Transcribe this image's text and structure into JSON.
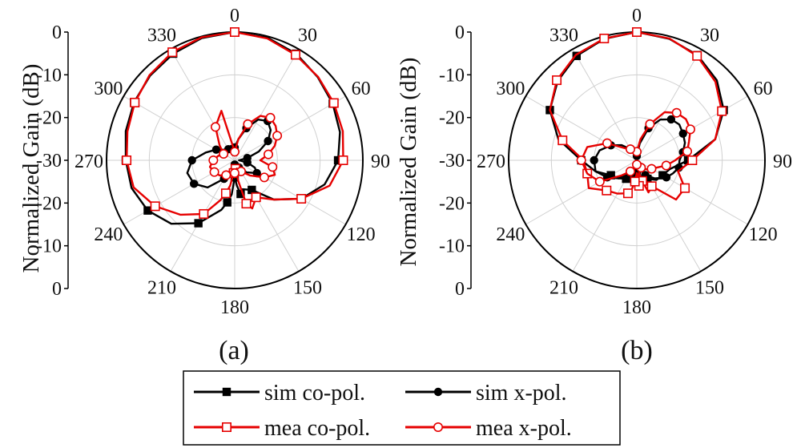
{
  "chart_data": [
    {
      "type": "polar-line",
      "panel_label": "(a)",
      "ylabel": "Normalized Gain (dB)",
      "radial_ticks": [
        "0",
        "-10",
        "-20",
        "-30",
        "-20",
        "-10",
        "0"
      ],
      "radial_range": [
        -30,
        0
      ],
      "angle_ticks": [
        "0",
        "30",
        "60",
        "90",
        "120",
        "150",
        "180",
        "210",
        "240",
        "270",
        "300",
        "330"
      ],
      "series": [
        {
          "name": "sim co-pol.",
          "color": "#000000",
          "marker": "square-filled",
          "angles": [
            0,
            15,
            30,
            45,
            60,
            75,
            90,
            105,
            120,
            135,
            150,
            165,
            170,
            175,
            180,
            185,
            190,
            195,
            210,
            225,
            240,
            255,
            270,
            285,
            300,
            315,
            330,
            345,
            360
          ],
          "values": [
            0,
            -0.3,
            -1.2,
            -2.5,
            -3.5,
            -4.5,
            -5.8,
            -8.2,
            -12,
            -17,
            -22,
            -23,
            -22,
            -24,
            -26,
            -22,
            -20,
            -18,
            -13,
            -9,
            -6.5,
            -5,
            -4.5,
            -3.6,
            -2.8,
            -2,
            -1.2,
            -0.4,
            0
          ]
        },
        {
          "name": "sim x-pol.",
          "color": "#000000",
          "marker": "circle-filled",
          "angles": [
            0,
            10,
            20,
            30,
            40,
            50,
            60,
            70,
            80,
            90,
            100,
            110,
            120,
            135,
            150,
            165,
            180,
            195,
            210,
            225,
            240,
            255,
            270,
            285,
            300,
            315,
            330,
            345,
            360
          ],
          "values": [
            -27,
            -25,
            -22,
            -19,
            -18,
            -19,
            -21,
            -24,
            -27,
            -29,
            -27,
            -25,
            -24,
            -26,
            -28,
            -29.5,
            -29,
            -28,
            -25,
            -21,
            -19,
            -18.5,
            -20,
            -23,
            -25,
            -26.5,
            -27,
            -26.5,
            -27
          ]
        },
        {
          "name": "mea co-pol.",
          "color": "#e60000",
          "marker": "square-open",
          "angles": [
            0,
            15,
            30,
            45,
            60,
            75,
            90,
            105,
            120,
            135,
            150,
            160,
            165,
            170,
            175,
            180,
            185,
            190,
            195,
            200,
            210,
            225,
            240,
            255,
            270,
            285,
            300,
            315,
            330,
            345,
            360
          ],
          "values": [
            0,
            -0.5,
            -1.5,
            -2.4,
            -3.2,
            -3.8,
            -4.6,
            -7,
            -12,
            -17,
            -20,
            -18,
            -19.5,
            -25,
            -28,
            -26,
            -27,
            -24,
            -22,
            -20,
            -15.5,
            -12,
            -8.5,
            -5.5,
            -4.7,
            -4,
            -3,
            -1.8,
            -0.8,
            -0.2,
            0
          ]
        },
        {
          "name": "mea x-pol.",
          "color": "#e60000",
          "marker": "circle-open",
          "angles": [
            0,
            10,
            20,
            30,
            40,
            50,
            60,
            70,
            80,
            90,
            100,
            110,
            120,
            135,
            150,
            165,
            180,
            195,
            210,
            225,
            240,
            255,
            270,
            285,
            300,
            315,
            330,
            345,
            360
          ],
          "values": [
            -28,
            -25,
            -21,
            -18,
            -17,
            -17.5,
            -18.5,
            -20,
            -22,
            -24,
            -21,
            -20,
            -22,
            -25,
            -27,
            -28,
            -27,
            -26.5,
            -26,
            -25,
            -24.5,
            -24,
            -25,
            -26,
            -27,
            -25,
            -21,
            -18,
            -28
          ]
        }
      ]
    },
    {
      "type": "polar-line",
      "panel_label": "(b)",
      "ylabel": "Normalized Gain (dB)",
      "radial_ticks": [
        "0",
        "-10",
        "-20",
        "-30",
        "-20",
        "-10",
        "0"
      ],
      "radial_range": [
        -30,
        0
      ],
      "angle_ticks": [
        "0",
        "30",
        "60",
        "90",
        "120",
        "150",
        "180",
        "210",
        "240",
        "270",
        "300",
        "330"
      ],
      "series": [
        {
          "name": "sim co-pol.",
          "color": "#000000",
          "marker": "square-filled",
          "angles": [
            0,
            15,
            30,
            45,
            60,
            75,
            90,
            105,
            120,
            135,
            150,
            165,
            180,
            195,
            210,
            225,
            240,
            255,
            270,
            285,
            300,
            315,
            330,
            345,
            360
          ],
          "values": [
            0,
            -0.6,
            -1.6,
            -3.5,
            -6.5,
            -11,
            -18,
            -22,
            -23,
            -23.5,
            -25,
            -26,
            -27,
            -26,
            -25,
            -24,
            -23,
            -20,
            -17,
            -11,
            -6.5,
            -3.8,
            -1.8,
            -0.6,
            0
          ]
        },
        {
          "name": "sim x-pol.",
          "color": "#000000",
          "marker": "circle-filled",
          "angles": [
            0,
            10,
            20,
            30,
            40,
            50,
            60,
            70,
            80,
            90,
            100,
            110,
            120,
            135,
            150,
            165,
            180,
            195,
            210,
            225,
            240,
            255,
            270,
            285,
            300,
            315,
            330,
            345,
            360
          ],
          "values": [
            -29,
            -26,
            -22,
            -19,
            -17.5,
            -17,
            -17.5,
            -18,
            -19,
            -20,
            -20,
            -21,
            -22,
            -24,
            -26,
            -28,
            -29,
            -28,
            -27,
            -24,
            -22,
            -20,
            -20,
            -21,
            -23,
            -25,
            -27,
            -28,
            -29
          ]
        },
        {
          "name": "mea co-pol.",
          "color": "#e60000",
          "marker": "square-open",
          "angles": [
            0,
            15,
            30,
            45,
            60,
            75,
            90,
            105,
            120,
            135,
            150,
            160,
            165,
            170,
            175,
            180,
            185,
            190,
            195,
            210,
            225,
            240,
            255,
            270,
            285,
            300,
            315,
            330,
            345,
            360
          ],
          "values": [
            0,
            -0.5,
            -1.8,
            -4,
            -7,
            -11,
            -17,
            -20,
            -17,
            -17,
            -23,
            -22,
            -25,
            -27,
            -24,
            -27,
            -25,
            -23,
            -22,
            -21,
            -20,
            -17,
            -18,
            -17.5,
            -12,
            -6.5,
            -3.5,
            -1.5,
            -0.5,
            0
          ]
        },
        {
          "name": "mea x-pol.",
          "color": "#e60000",
          "marker": "circle-open",
          "angles": [
            0,
            10,
            20,
            30,
            40,
            50,
            60,
            70,
            80,
            90,
            100,
            110,
            120,
            135,
            150,
            165,
            180,
            195,
            210,
            225,
            240,
            255,
            270,
            285,
            300,
            315,
            330,
            345,
            360
          ],
          "values": [
            -28,
            -25,
            -21,
            -17,
            -15.5,
            -15,
            -15.5,
            -17,
            -18,
            -21,
            -23,
            -25,
            -26,
            -27,
            -28,
            -29,
            -29,
            -28,
            -27,
            -25,
            -20,
            -18,
            -17,
            -18,
            -22,
            -26,
            -27,
            -28,
            -28
          ]
        }
      ]
    }
  ],
  "legend": [
    {
      "label": "sim co-pol."
    },
    {
      "label": "sim x-pol."
    },
    {
      "label": "mea co-pol."
    },
    {
      "label": "mea x-pol."
    }
  ]
}
